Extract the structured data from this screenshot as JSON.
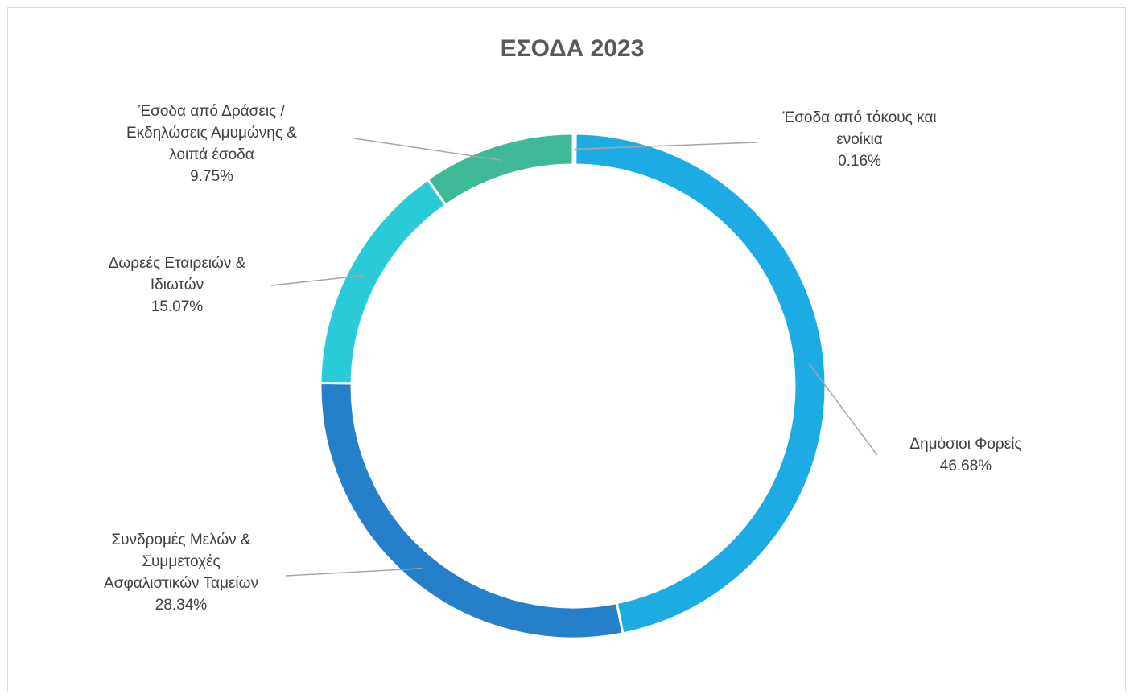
{
  "chart_data": {
    "type": "pie",
    "variant": "doughnut",
    "title": "ΕΣΟΔΑ 2023",
    "slices": [
      {
        "label_lines": [
          "Έσοδα από τόκους και",
          "ενοίκια"
        ],
        "percent_label": "0.16%",
        "value": 0.16,
        "color": "#4472C4"
      },
      {
        "label_lines": [
          "Δημόσιοι Φορείς"
        ],
        "percent_label": "46.68%",
        "value": 46.68,
        "color": "#1CACE3"
      },
      {
        "label_lines": [
          "Συνδρομές Μελών &",
          "Συμμετοχές",
          "Ασφαλιστικών Ταμείων"
        ],
        "percent_label": "28.34%",
        "value": 28.34,
        "color": "#2680C9"
      },
      {
        "label_lines": [
          "Δωρεές Εταιρειών &",
          "Ιδιωτών"
        ],
        "percent_label": "15.07%",
        "value": 15.07,
        "color": "#2BCAD9"
      },
      {
        "label_lines": [
          "Έσοδα από Δράσεις /",
          "Εκδηλώσεις Αμυμώνης &",
          "λοιπά έσοδα"
        ],
        "percent_label": "9.75%",
        "value": 9.75,
        "color": "#3DB998"
      }
    ],
    "legend": "none",
    "data_labels": "outside with leader lines"
  }
}
